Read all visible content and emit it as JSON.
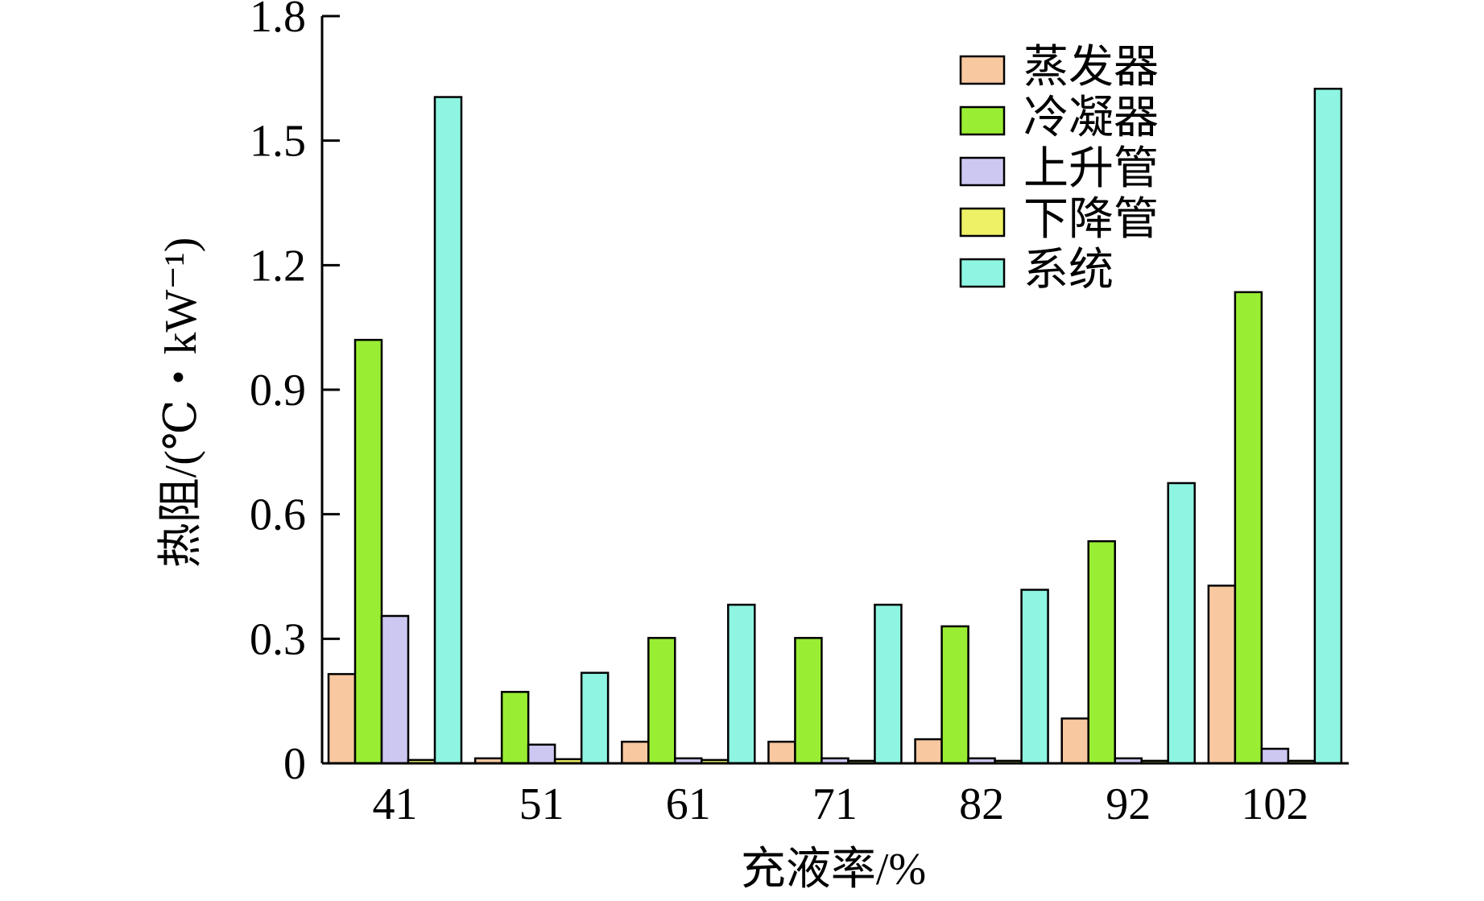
{
  "chart_data": {
    "type": "bar",
    "title": "",
    "xlabel": "充液率/%",
    "ylabel": "热阻/(℃・kW⁻¹)",
    "categories": [
      "41",
      "51",
      "61",
      "71",
      "82",
      "92",
      "102"
    ],
    "ylim": [
      0,
      1.8
    ],
    "yticks": [
      0,
      0.3,
      0.6,
      0.9,
      1.2,
      1.5,
      1.8
    ],
    "ytick_labels": [
      "0",
      "0.3",
      "0.6",
      "0.9",
      "1.2",
      "1.5",
      "1.8"
    ],
    "grid": false,
    "legend_position": "top-right",
    "series": [
      {
        "name": "蒸发器",
        "color": "#F8C8A0",
        "values": [
          0.215,
          0.012,
          0.052,
          0.052,
          0.058,
          0.108,
          0.428
        ]
      },
      {
        "name": "冷凝器",
        "color": "#99EE33",
        "values": [
          1.02,
          0.172,
          0.302,
          0.302,
          0.33,
          0.535,
          1.135
        ]
      },
      {
        "name": "上升管",
        "color": "#CCC8F2",
        "values": [
          0.355,
          0.045,
          0.012,
          0.012,
          0.012,
          0.012,
          0.035
        ]
      },
      {
        "name": "下降管",
        "color": "#EEF066",
        "values": [
          0.008,
          0.01,
          0.008,
          0.006,
          0.006,
          0.006,
          0.006
        ]
      },
      {
        "name": "系统",
        "color": "#8EF5E2",
        "values": [
          1.605,
          0.218,
          0.382,
          0.382,
          0.418,
          0.675,
          1.625
        ]
      }
    ]
  }
}
